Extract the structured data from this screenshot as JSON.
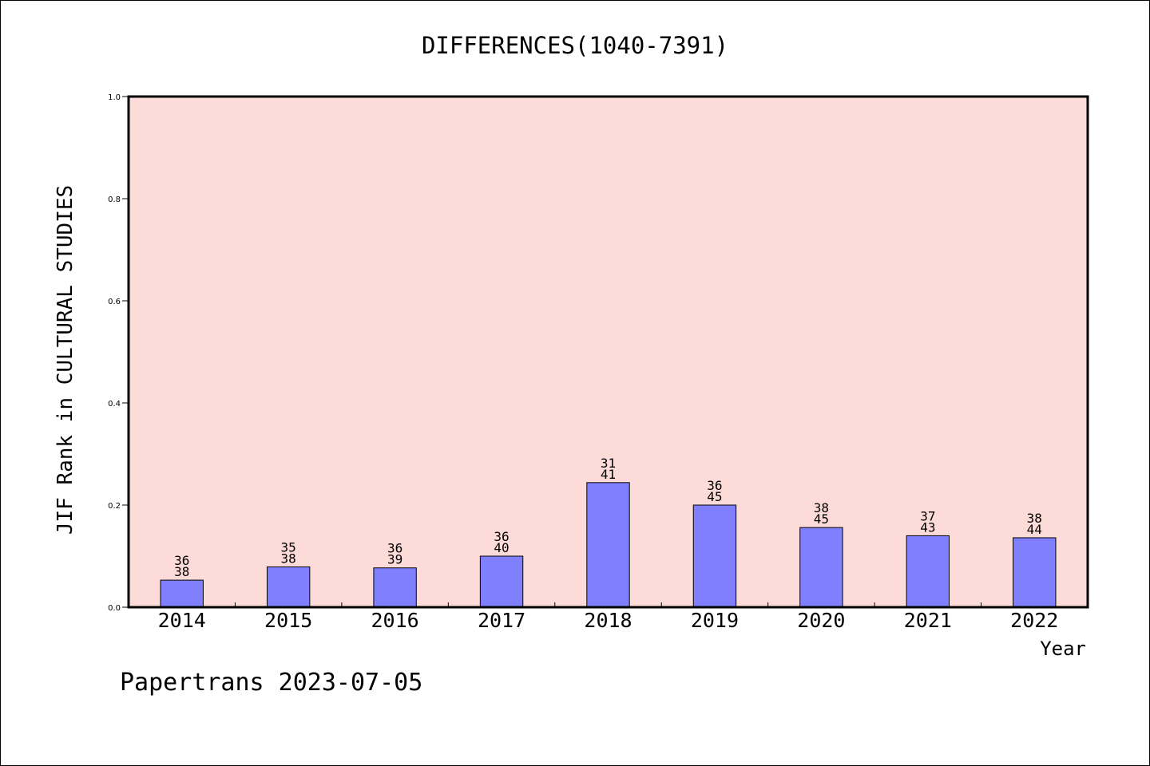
{
  "chart_data": {
    "type": "bar",
    "title": "DIFFERENCES(1040-7391)",
    "xlabel": "Year",
    "ylabel": "JIF Rank in CULTURAL STUDIES",
    "ylim": [
      0,
      1
    ],
    "yticks": [
      "0.0",
      "0.2",
      "0.4",
      "0.6",
      "0.8",
      "1.0"
    ],
    "grid": false,
    "categories": [
      "2014",
      "2015",
      "2016",
      "2017",
      "2018",
      "2019",
      "2020",
      "2021",
      "2022"
    ],
    "values": [
      0.053,
      0.079,
      0.077,
      0.1,
      0.244,
      0.2,
      0.156,
      0.14,
      0.136
    ],
    "rank": [
      "36",
      "35",
      "36",
      "36",
      "31",
      "36",
      "38",
      "37",
      "38"
    ],
    "total": [
      "38",
      "38",
      "39",
      "40",
      "41",
      "45",
      "45",
      "43",
      "44"
    ],
    "colors": {
      "plot_background": "#fddbd8",
      "bar_fill": "#8080ff",
      "bar_stroke": "#000000"
    }
  },
  "footer": {
    "watermark": "Papertrans 2023-07-05"
  }
}
